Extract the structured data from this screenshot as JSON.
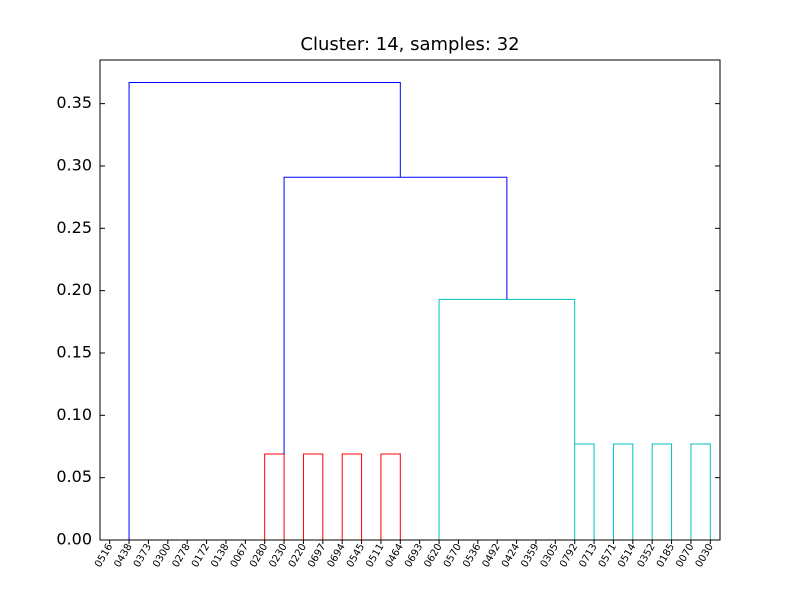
{
  "chart_data": {
    "type": "dendrogram",
    "title": "Cluster: 14, samples: 32",
    "xlabel": "",
    "ylabel": "",
    "ylim": [
      0.0,
      0.385
    ],
    "grid": false,
    "yticks": [
      "0.00",
      "0.05",
      "0.10",
      "0.15",
      "0.20",
      "0.25",
      "0.30",
      "0.35"
    ],
    "yticks_values": [
      0.0,
      0.05,
      0.1,
      0.15,
      0.2,
      0.25,
      0.3,
      0.35
    ],
    "leaves": [
      "0516",
      "0438",
      "0373",
      "0300",
      "0278",
      "0172",
      "0138",
      "0067",
      "0280",
      "0230",
      "0220",
      "0697",
      "0694",
      "0545",
      "0511",
      "0464",
      "0693",
      "0620",
      "0570",
      "0536",
      "0492",
      "0424",
      "0359",
      "0305",
      "0792",
      "0713",
      "0571",
      "0514",
      "0352",
      "0185",
      "0070",
      "0030"
    ],
    "colors": {
      "red": "#ff0000",
      "cyan": "#00bfbf",
      "blue": "#0000ff"
    },
    "links": [
      {
        "x": [
          9,
          9,
          10,
          10
        ],
        "y": [
          0.0,
          0.069,
          0.069,
          0.0
        ],
        "color": "red"
      },
      {
        "x": [
          11,
          11,
          12,
          12
        ],
        "y": [
          0.0,
          0.069,
          0.069,
          0.0
        ],
        "color": "red"
      },
      {
        "x": [
          13,
          13,
          14,
          14
        ],
        "y": [
          0.0,
          0.069,
          0.069,
          0.0
        ],
        "color": "red"
      },
      {
        "x": [
          15,
          15,
          16,
          16
        ],
        "y": [
          0.0,
          0.069,
          0.069,
          0.0
        ],
        "color": "red"
      },
      {
        "x": [
          25,
          25,
          26,
          26
        ],
        "y": [
          0.0,
          0.077,
          0.077,
          0.0
        ],
        "color": "cyan"
      },
      {
        "x": [
          27,
          27,
          28,
          28
        ],
        "y": [
          0.0,
          0.077,
          0.077,
          0.0
        ],
        "color": "cyan"
      },
      {
        "x": [
          29,
          29,
          30,
          30
        ],
        "y": [
          0.0,
          0.077,
          0.077,
          0.0
        ],
        "color": "cyan"
      },
      {
        "x": [
          31,
          31,
          32,
          32
        ],
        "y": [
          0.0,
          0.077,
          0.077,
          0.0
        ],
        "color": "cyan"
      },
      {
        "x": [
          18,
          18,
          25,
          25
        ],
        "y": [
          0.0,
          0.193,
          0.193,
          0.077
        ],
        "color": "cyan"
      },
      {
        "x": [
          10,
          10,
          21.5,
          21.5
        ],
        "y": [
          0.069,
          0.291,
          0.291,
          0.193
        ],
        "color": "blue"
      },
      {
        "x": [
          2,
          2,
          16,
          16
        ],
        "y": [
          0.0,
          0.367,
          0.367,
          0.291
        ],
        "color": "blue"
      }
    ]
  }
}
